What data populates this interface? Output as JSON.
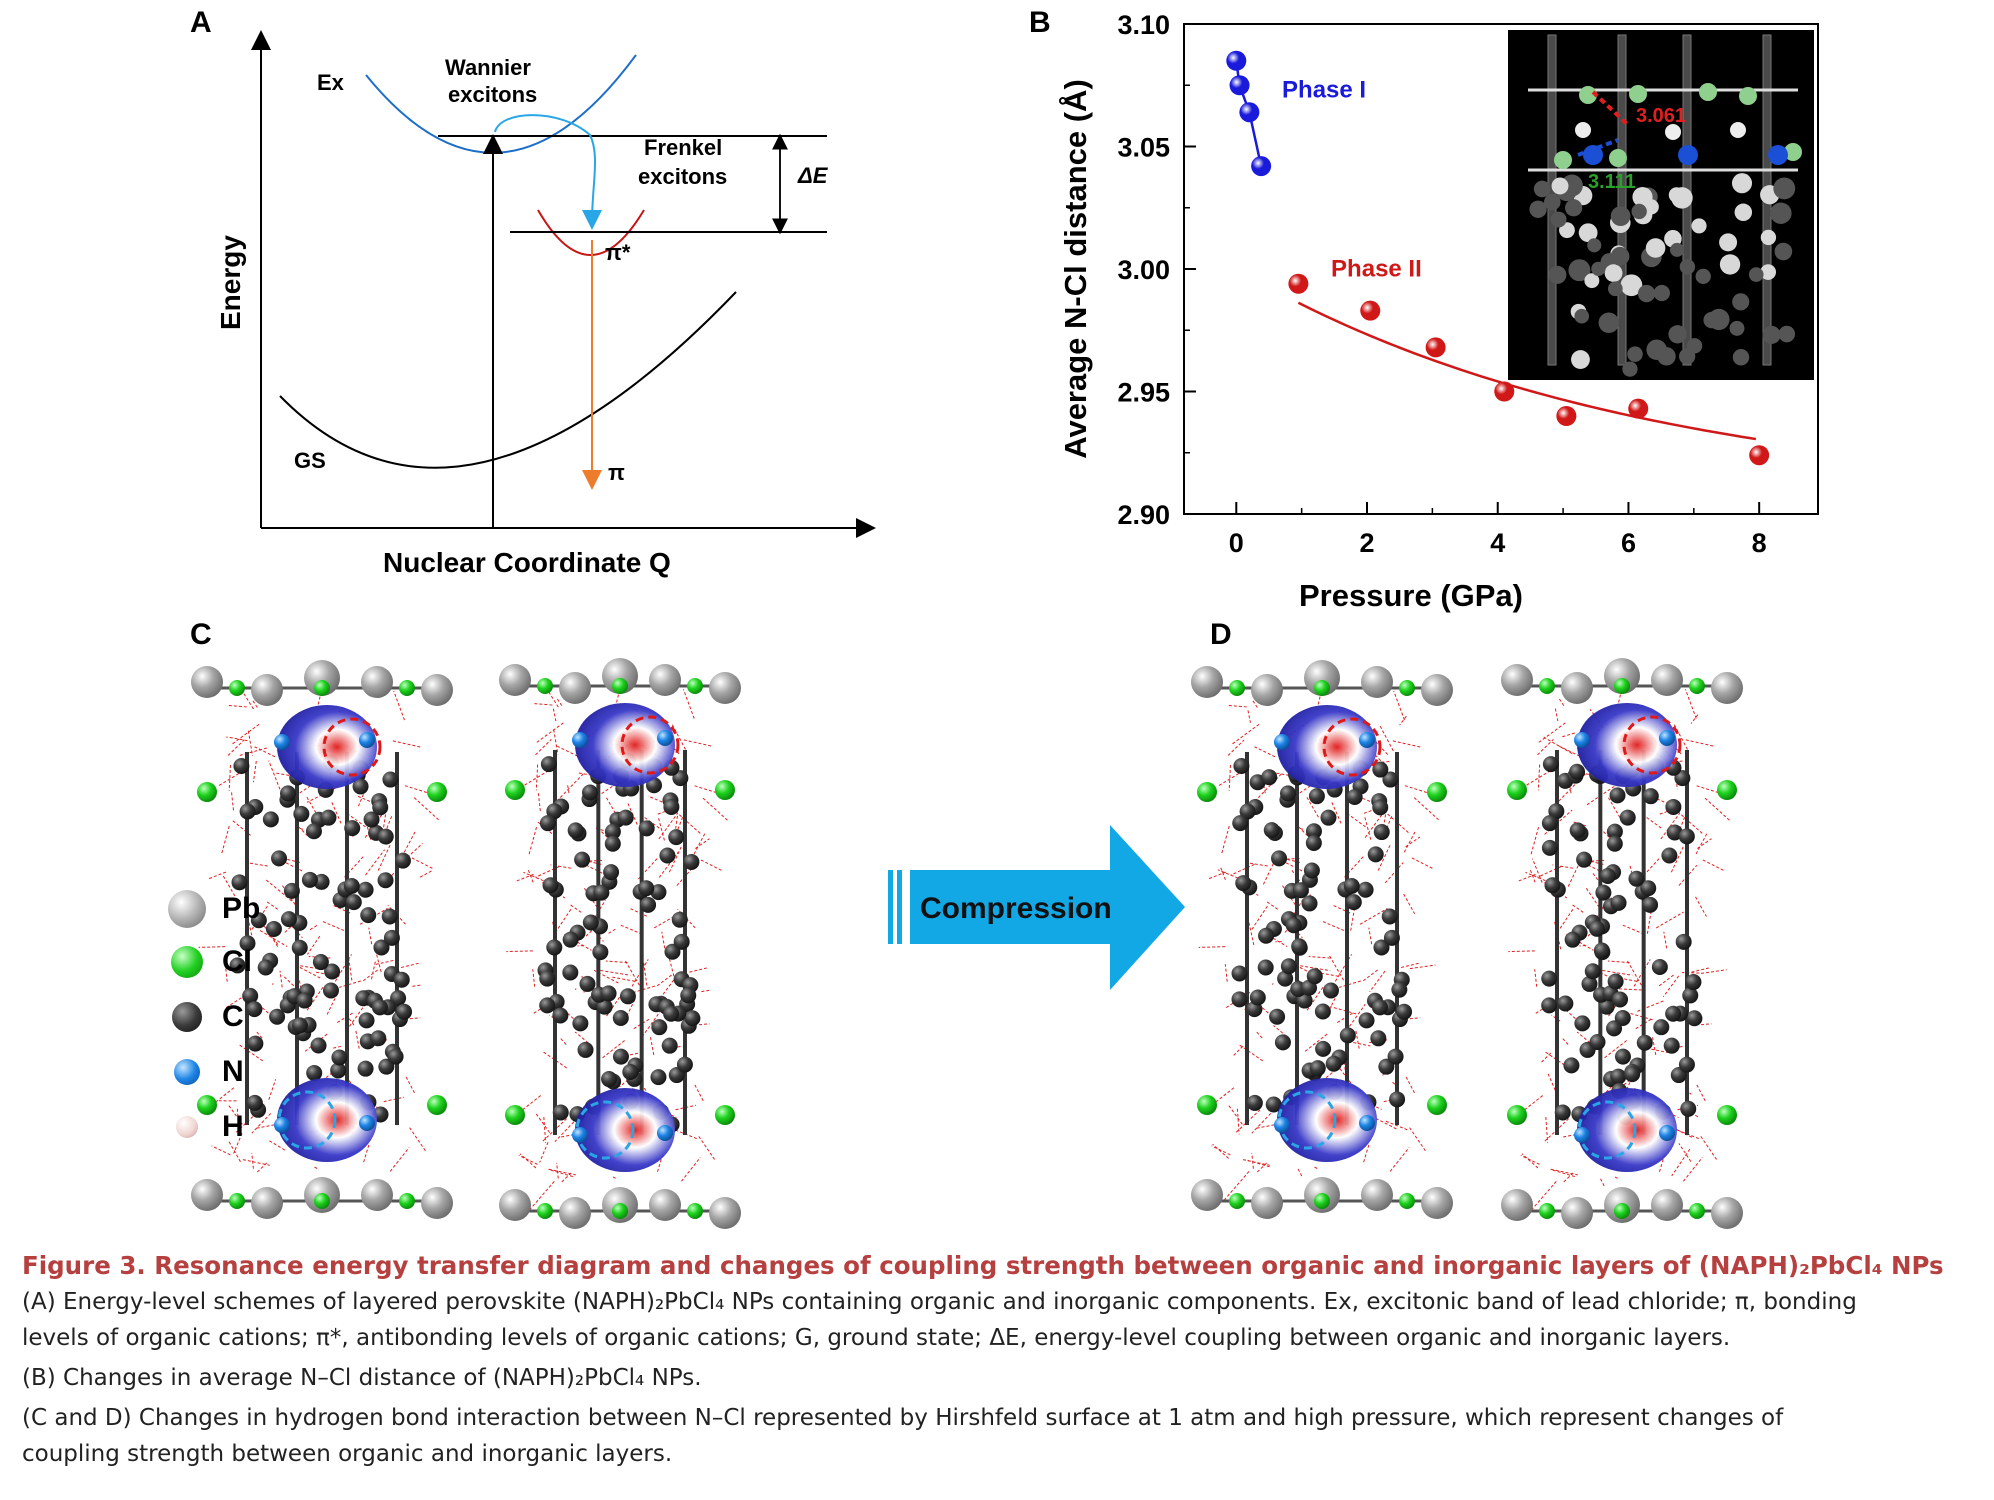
{
  "panelA": {
    "letter": "A",
    "ylabel": "Energy",
    "xlabel": "Nuclear Coordinate Q",
    "labels": {
      "ex": "Ex",
      "wannier_1": "Wannier",
      "wannier_2": "excitons",
      "frenkel_1": "Frenkel",
      "frenkel_2": "excitons",
      "delta_e": "ΔE",
      "pi_star": "π*",
      "pi": "π",
      "gs": "GS"
    }
  },
  "panelB": {
    "letter": "B",
    "chart_data": {
      "type": "scatter",
      "xlabel": "Pressure (GPa)",
      "ylabel": "Average N-Cl distance (Å)",
      "xlim": [
        -0.8,
        8.9
      ],
      "ylim": [
        2.9,
        3.1
      ],
      "xticks": [
        "0",
        "2",
        "4",
        "6",
        "8"
      ],
      "yticks": [
        "2.90",
        "2.95",
        "3.00",
        "3.05",
        "3.10"
      ],
      "series": [
        {
          "name": "Phase I",
          "color": "#1a1adb",
          "x": [
            0.0,
            0.05,
            0.2,
            0.38
          ],
          "y": [
            3.085,
            3.075,
            3.064,
            3.042
          ]
        },
        {
          "name": "Phase II",
          "color": "#d01818",
          "x": [
            0.95,
            2.05,
            3.05,
            4.1,
            5.05,
            6.15,
            8.0
          ],
          "y": [
            2.994,
            2.983,
            2.968,
            2.95,
            2.94,
            2.943,
            2.924
          ]
        }
      ],
      "inset_labels": [
        "3.061",
        "3.111"
      ]
    }
  },
  "panelC": {
    "letter": "C"
  },
  "panelD": {
    "letter": "D"
  },
  "arrow_label": "Compression",
  "legend": [
    {
      "label": "Pb",
      "color": "#9a9a9a"
    },
    {
      "label": "Cl",
      "color": "#15c315"
    },
    {
      "label": "C",
      "color": "#3a3a3a"
    },
    {
      "label": "N",
      "color": "#1d7fe0"
    },
    {
      "label": "H",
      "color": "#e8c8c4"
    }
  ],
  "caption": {
    "title": "Figure 3.  Resonance energy transfer diagram and changes of coupling strength between organic and inorganic layers of (NAPH)₂PbCl₄ NPs",
    "lines": [
      "(A) Energy-level schemes of layered perovskite (NAPH)₂PbCl₄ NPs containing organic and inorganic components. Ex, excitonic band of lead chloride; π, bonding",
      "levels of organic cations; π*, antibonding levels of organic cations; G, ground state; ΔE, energy-level coupling between organic and inorganic layers.",
      "(B) Changes in average N–Cl distance of (NAPH)₂PbCl₄ NPs.",
      "(C and D) Changes in hydrogen bond interaction between N–Cl represented by Hirshfeld surface at 1 atm and high pressure, which represent changes of",
      "coupling strength between organic and inorganic layers."
    ]
  }
}
